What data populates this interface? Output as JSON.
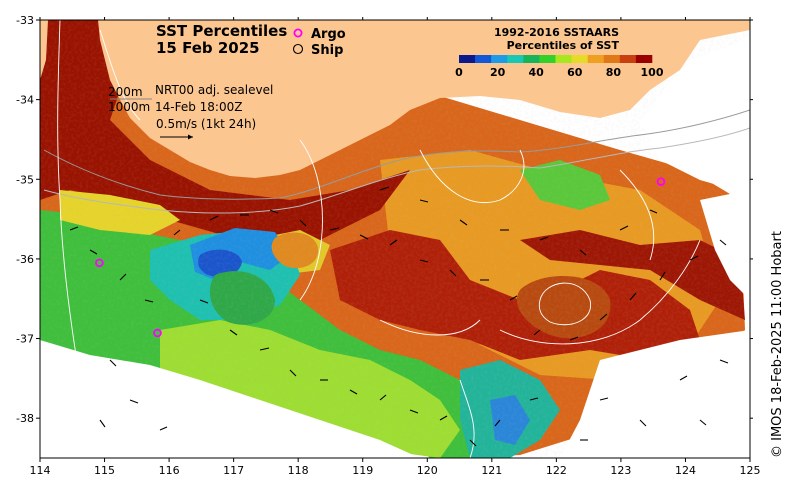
{
  "title": {
    "line1": "SST Percentiles",
    "line2": "15 Feb 2025"
  },
  "markers_legend": {
    "argo": "Argo",
    "ship": "Ship",
    "argo_color": "#ff00ff",
    "ship_color": "#000000"
  },
  "colorbar": {
    "title1": "1992-2016 SSTAARS",
    "title2": "Percentiles of SST",
    "ticks": [
      "0",
      "20",
      "40",
      "60",
      "80",
      "100"
    ],
    "colors": [
      "#0a1a8c",
      "#1456d8",
      "#1e9be6",
      "#19c8b4",
      "#16b45a",
      "#34d02a",
      "#a8e61e",
      "#e6dc28",
      "#f0a020",
      "#e07818",
      "#c84010",
      "#9a0000"
    ]
  },
  "notes": {
    "depth1": "200m",
    "depth2": "1000m",
    "product": "NRT00 adj. sealevel",
    "time": "14-Feb 18:00Z",
    "scale": "0.5m/s (1kt 24h)"
  },
  "credit": "© IMOS 18-Feb-2025 11:00 Hobart",
  "axes": {
    "x_ticks": [
      "114",
      "115",
      "116",
      "117",
      "118",
      "119",
      "120",
      "121",
      "122",
      "123",
      "124",
      "125"
    ],
    "y_ticks": [
      "-33",
      "-34",
      "-35",
      "-36",
      "-37",
      "-38"
    ],
    "xlim": [
      114,
      125
    ],
    "ylim": [
      -38.5,
      -33
    ]
  },
  "argo_floats": [
    {
      "lon": 114.92,
      "lat": -36.05
    },
    {
      "lon": 115.82,
      "lat": -36.93
    },
    {
      "lon": 123.62,
      "lat": -35.03
    }
  ],
  "colors": {
    "land": "#fbc690",
    "ocean_background": "#ffffff"
  }
}
